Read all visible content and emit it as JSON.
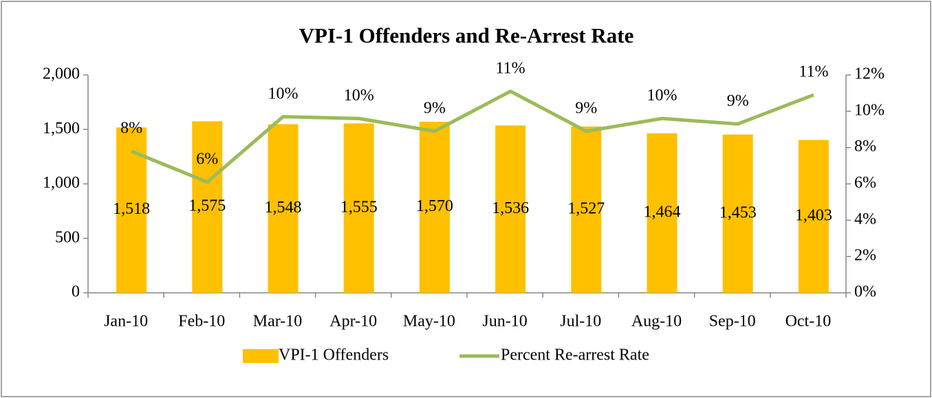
{
  "chart_data": {
    "type": "bar",
    "title": "VPI-1 Offenders and Re-Arrest Rate",
    "categories": [
      "Jan-10",
      "Feb-10",
      "Mar-10",
      "Apr-10",
      "May-10",
      "Jun-10",
      "Jul-10",
      "Aug-10",
      "Sep-10",
      "Oct-10"
    ],
    "series": [
      {
        "name": "VPI-1 Offenders",
        "type": "bar",
        "color": "#FFC000",
        "values": [
          1518,
          1575,
          1548,
          1555,
          1570,
          1536,
          1527,
          1464,
          1453,
          1403
        ],
        "value_labels": [
          "1,518",
          "1,575",
          "1,548",
          "1,555",
          "1,570",
          "1,536",
          "1,527",
          "1,464",
          "1,453",
          "1,403"
        ]
      },
      {
        "name": "Percent Re-arrest Rate",
        "type": "line",
        "axis": "y2",
        "color": "#9BBB59",
        "values": [
          7.8,
          6.1,
          9.7,
          9.6,
          8.9,
          11.1,
          8.9,
          9.6,
          9.3,
          10.9
        ],
        "value_labels": [
          "8%",
          "6%",
          "10%",
          "10%",
          "9%",
          "11%",
          "9%",
          "10%",
          "9%",
          "11%"
        ]
      }
    ],
    "ylim": [
      0,
      2000
    ],
    "yticks": [
      0,
      500,
      {
        "value": 1000,
        "label": "1,000"
      },
      {
        "value": 1500,
        "label": "1,500"
      },
      {
        "value": 2000,
        "label": "2,000"
      }
    ],
    "y2lim": [
      0,
      12
    ],
    "y2ticks": [
      {
        "value": 0,
        "label": "0%"
      },
      {
        "value": 2,
        "label": "2%"
      },
      {
        "value": 4,
        "label": "4%"
      },
      {
        "value": 6,
        "label": "6%"
      },
      {
        "value": 8,
        "label": "8%"
      },
      {
        "value": 10,
        "label": "10%"
      },
      {
        "value": 12,
        "label": "12%"
      }
    ],
    "legend": "bottom"
  }
}
